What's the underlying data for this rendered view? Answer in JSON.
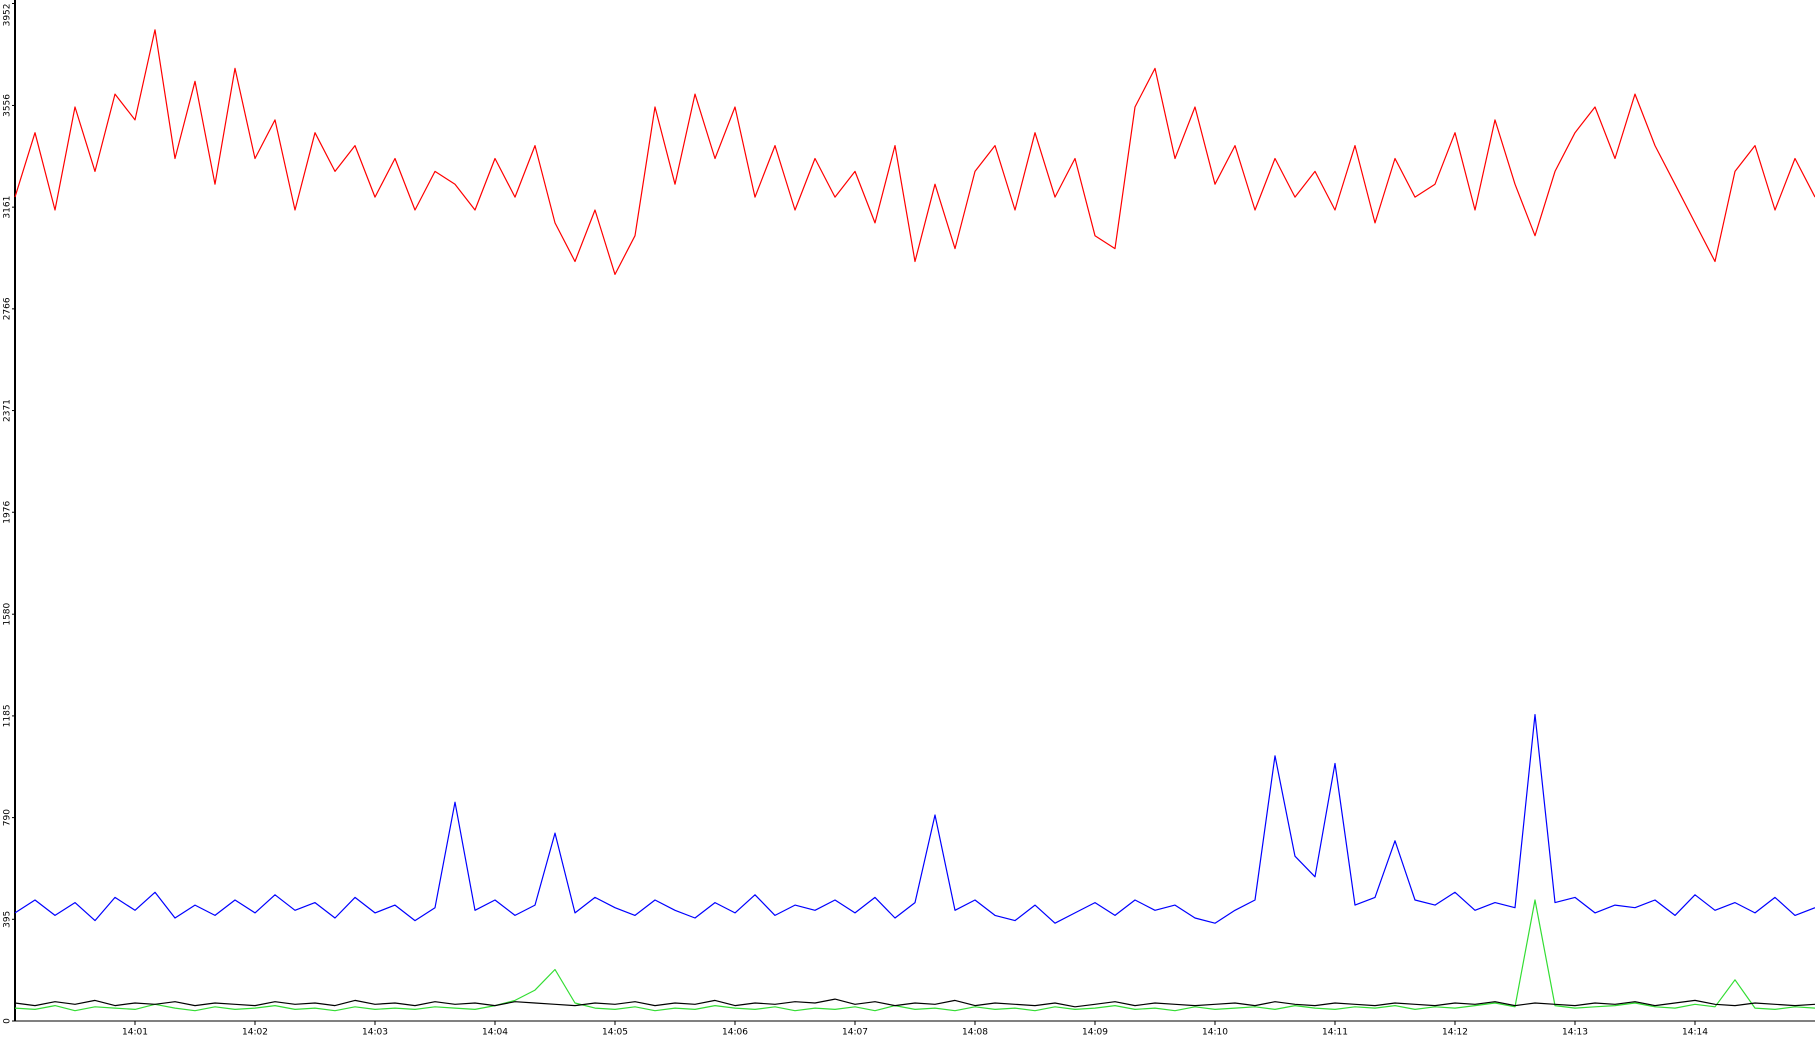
{
  "chart_data": {
    "type": "line",
    "categories": [
      null,
      null,
      null,
      null,
      null,
      null,
      "14:01",
      null,
      null,
      null,
      null,
      null,
      "14:02",
      null,
      null,
      null,
      null,
      null,
      "14:03",
      null,
      null,
      null,
      null,
      null,
      "14:04",
      null,
      null,
      null,
      null,
      null,
      "14:05",
      null,
      null,
      null,
      null,
      null,
      "14:06",
      null,
      null,
      null,
      null,
      null,
      "14:07",
      null,
      null,
      null,
      null,
      null,
      "14:08",
      null,
      null,
      null,
      null,
      null,
      "14:09",
      null,
      null,
      null,
      null,
      null,
      "14:10",
      null,
      null,
      null,
      null,
      null,
      "14:11",
      null,
      null,
      null,
      null,
      null,
      "14:12",
      null,
      null,
      null,
      null,
      null,
      "14:13",
      null,
      null,
      null,
      null,
      null,
      "14:14",
      null,
      null,
      null,
      null,
      null,
      null
    ],
    "series": [
      {
        "color": "#ff0000",
        "values": [
          3200,
          3450,
          3150,
          3550,
          3300,
          3600,
          3500,
          3850,
          3350,
          3650,
          3250,
          3700,
          3350,
          3500,
          3150,
          3450,
          3300,
          3400,
          3200,
          3350,
          3150,
          3300,
          3250,
          3150,
          3350,
          3200,
          3400,
          3100,
          2950,
          3150,
          2900,
          3050,
          3550,
          3250,
          3600,
          3350,
          3550,
          3200,
          3400,
          3150,
          3350,
          3200,
          3300,
          3100,
          3400,
          2950,
          3250,
          3000,
          3300,
          3400,
          3150,
          3450,
          3200,
          3350,
          3050,
          3000,
          3550,
          3700,
          3350,
          3550,
          3250,
          3400,
          3150,
          3350,
          3200,
          3300,
          3150,
          3400,
          3100,
          3350,
          3200,
          3250,
          3450,
          3150,
          3500,
          3250,
          3050,
          3300,
          3450,
          3550,
          3350,
          3600,
          3400,
          3250,
          3100,
          2950,
          3300,
          3400,
          3150,
          3350,
          3200
        ]
      },
      {
        "color": "#0000ff",
        "values": [
          420,
          470,
          410,
          460,
          390,
          480,
          430,
          500,
          400,
          450,
          410,
          470,
          420,
          490,
          430,
          460,
          400,
          480,
          420,
          450,
          390,
          440,
          850,
          430,
          470,
          410,
          450,
          730,
          420,
          480,
          440,
          410,
          470,
          430,
          400,
          460,
          420,
          490,
          410,
          450,
          430,
          470,
          420,
          480,
          400,
          460,
          800,
          430,
          470,
          410,
          390,
          450,
          380,
          420,
          460,
          410,
          470,
          430,
          450,
          400,
          380,
          430,
          470,
          1030,
          640,
          560,
          1000,
          450,
          480,
          700,
          470,
          450,
          500,
          430,
          460,
          440,
          1190,
          460,
          480,
          420,
          450,
          440,
          470,
          410,
          490,
          430,
          460,
          420,
          480,
          410,
          440
        ]
      },
      {
        "color": "#33dd33",
        "values": [
          50,
          45,
          60,
          40,
          55,
          50,
          45,
          65,
          50,
          40,
          55,
          45,
          50,
          60,
          45,
          50,
          40,
          55,
          45,
          50,
          45,
          55,
          50,
          45,
          60,
          80,
          120,
          200,
          70,
          50,
          45,
          55,
          40,
          50,
          45,
          60,
          50,
          45,
          55,
          40,
          50,
          45,
          55,
          40,
          60,
          45,
          50,
          40,
          55,
          45,
          50,
          40,
          55,
          45,
          50,
          60,
          45,
          50,
          40,
          55,
          45,
          50,
          55,
          45,
          60,
          50,
          45,
          55,
          50,
          60,
          45,
          55,
          50,
          60,
          70,
          55,
          470,
          60,
          50,
          55,
          60,
          70,
          55,
          50,
          65,
          55,
          160,
          50,
          45,
          55,
          50
        ]
      },
      {
        "color": "#000000",
        "values": [
          70,
          60,
          75,
          65,
          80,
          60,
          70,
          65,
          75,
          60,
          70,
          65,
          60,
          75,
          65,
          70,
          60,
          80,
          65,
          70,
          60,
          75,
          65,
          70,
          60,
          75,
          70,
          65,
          60,
          70,
          65,
          75,
          60,
          70,
          65,
          80,
          60,
          70,
          65,
          75,
          70,
          85,
          65,
          75,
          60,
          70,
          65,
          80,
          60,
          70,
          65,
          60,
          70,
          55,
          65,
          75,
          60,
          70,
          65,
          60,
          65,
          70,
          60,
          75,
          65,
          60,
          70,
          65,
          60,
          70,
          65,
          60,
          70,
          65,
          75,
          60,
          70,
          65,
          60,
          70,
          65,
          75,
          60,
          70,
          80,
          65,
          60,
          70,
          65,
          60,
          65
        ]
      }
    ],
    "ylim": [
      0,
      3952
    ],
    "yticks": [
      0,
      395,
      790,
      1185,
      1580,
      1976,
      2371,
      2766,
      3161,
      3556,
      3952
    ]
  }
}
